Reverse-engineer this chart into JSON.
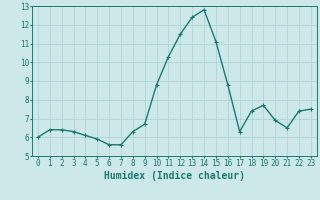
{
  "x": [
    0,
    1,
    2,
    3,
    4,
    5,
    6,
    7,
    8,
    9,
    10,
    11,
    12,
    13,
    14,
    15,
    16,
    17,
    18,
    19,
    20,
    21,
    22,
    23
  ],
  "y": [
    6.0,
    6.4,
    6.4,
    6.3,
    6.1,
    5.9,
    5.6,
    5.6,
    6.3,
    6.7,
    8.8,
    10.3,
    11.5,
    12.4,
    12.8,
    11.1,
    8.8,
    6.3,
    7.4,
    7.7,
    6.9,
    6.5,
    7.4,
    7.5
  ],
  "line_color": "#1a7a6e",
  "marker": "+",
  "marker_size": 3,
  "bg_color": "#cce8e8",
  "grid_color": "#aacfcf",
  "xlabel": "Humidex (Indice chaleur)",
  "xlim": [
    -0.5,
    23.5
  ],
  "ylim": [
    5,
    13
  ],
  "xticks": [
    0,
    1,
    2,
    3,
    4,
    5,
    6,
    7,
    8,
    9,
    10,
    11,
    12,
    13,
    14,
    15,
    16,
    17,
    18,
    19,
    20,
    21,
    22,
    23
  ],
  "yticks": [
    5,
    6,
    7,
    8,
    9,
    10,
    11,
    12,
    13
  ],
  "tick_label_fontsize": 5.5,
  "xlabel_fontsize": 7.0,
  "line_width": 1.0
}
